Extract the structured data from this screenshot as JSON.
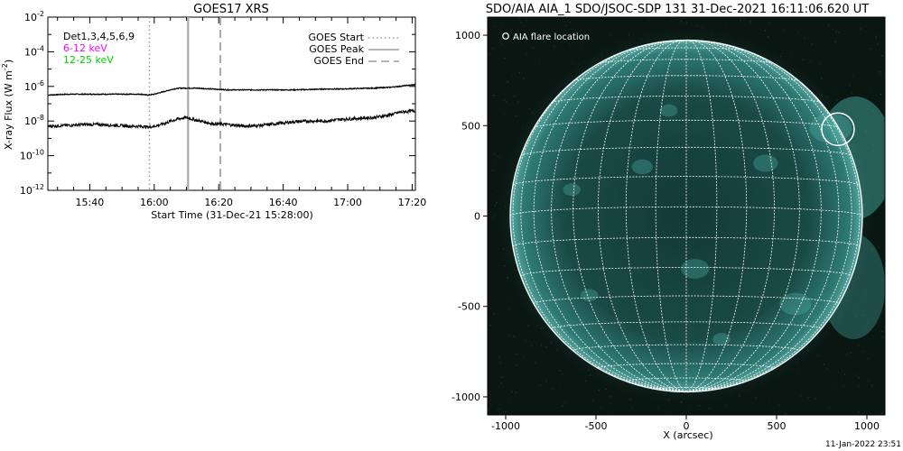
{
  "chart_data": [
    {
      "type": "line",
      "title": "GOES17 XRS",
      "xlabel": "Start Time (31-Dec-21 15:28:00)",
      "ylabel": "X-ray Flux (W m",
      "ylabel_sup": "-2",
      "ylabel_close": ")",
      "yscale": "log",
      "ylim_exp": [
        -12,
        -2
      ],
      "y_ticks": [
        {
          "base": "10",
          "exp": "-2",
          "e": -2
        },
        {
          "base": "10",
          "exp": "-4",
          "e": -4
        },
        {
          "base": "10",
          "exp": "-6",
          "e": -6
        },
        {
          "base": "10",
          "exp": "-8",
          "e": -8
        },
        {
          "base": "10",
          "exp": "-10",
          "e": -10
        },
        {
          "base": "10",
          "exp": "-12",
          "e": -12
        }
      ],
      "xlim_min": [
        -1,
        113
      ],
      "x_ticks": [
        {
          "label": "15:40",
          "min": 12
        },
        {
          "label": "16:00",
          "min": 32
        },
        {
          "label": "16:20",
          "min": 52
        },
        {
          "label": "16:40",
          "min": 72
        },
        {
          "label": "17:00",
          "min": 92
        },
        {
          "label": "17:20",
          "min": 112
        }
      ],
      "detector_labels": [
        {
          "text": "Det1,3,4,5,6,9",
          "color": "#000000"
        },
        {
          "text": "6-12 keV",
          "color": "#ff00ff"
        },
        {
          "text": "12-25 keV",
          "color": "#00cc00"
        }
      ],
      "legend": [
        {
          "name": "GOES Start",
          "style": "dotted"
        },
        {
          "name": "GOES Peak",
          "style": "solid"
        },
        {
          "name": "GOES End",
          "style": "dashed"
        }
      ],
      "event_lines_min": {
        "start": 30.5,
        "peak": 42.5,
        "end": 52.5
      },
      "series": [
        {
          "channel": "long",
          "x_min": [
            -1,
            5,
            10,
            15,
            20,
            25,
            28,
            30,
            32,
            35,
            38,
            40,
            42,
            45,
            50,
            55,
            60,
            65,
            70,
            75,
            80,
            85,
            90,
            95,
            100,
            105,
            108,
            110,
            113
          ],
          "log_flux": [
            -6.5,
            -6.45,
            -6.45,
            -6.45,
            -6.45,
            -6.45,
            -6.45,
            -6.5,
            -6.45,
            -6.3,
            -6.15,
            -6.1,
            -6.1,
            -6.1,
            -6.15,
            -6.2,
            -6.2,
            -6.2,
            -6.2,
            -6.2,
            -6.18,
            -6.15,
            -6.15,
            -6.12,
            -6.1,
            -6.05,
            -6.0,
            -5.95,
            -5.9
          ]
        },
        {
          "channel": "short",
          "x_min": [
            -1,
            5,
            10,
            15,
            20,
            25,
            28,
            30,
            32,
            35,
            38,
            40,
            42,
            45,
            50,
            55,
            60,
            65,
            70,
            75,
            80,
            85,
            90,
            95,
            100,
            105,
            108,
            110,
            113
          ],
          "log_flux": [
            -8.3,
            -8.25,
            -8.2,
            -8.2,
            -8.25,
            -8.3,
            -8.3,
            -8.35,
            -8.3,
            -8.15,
            -7.95,
            -7.85,
            -7.8,
            -7.95,
            -8.15,
            -8.2,
            -8.3,
            -8.25,
            -8.15,
            -8.05,
            -8.0,
            -8.0,
            -7.9,
            -7.85,
            -7.8,
            -7.65,
            -7.5,
            -7.45,
            -7.4
          ]
        }
      ]
    },
    {
      "type": "image",
      "title": "SDO/AIA AIA_1 SDO/JSOC-SDP 131 31-Dec-2021 16:11:06.620 UT",
      "xlabel": "X (arcsec)",
      "xlim": [
        -1100,
        1100
      ],
      "ylim": [
        -1100,
        1100
      ],
      "x_ticks": [
        -1000,
        -500,
        0,
        500,
        1000
      ],
      "y_ticks": [
        1000,
        500,
        0,
        -500,
        -1000
      ],
      "legend_label": "AIA flare location",
      "flare_location_arcsec": [
        840,
        480
      ],
      "flare_circle_radius_arcsec": 90,
      "disk_radius_arcsec": 975,
      "grid_spacing_deg": 10,
      "colors": {
        "background": "#0a1612",
        "disk": "#1a4a46",
        "limb": "#5aa6a0",
        "grid": "#ffffff"
      }
    }
  ],
  "footer": {
    "timestamp": "11-Jan-2022 23:51"
  }
}
